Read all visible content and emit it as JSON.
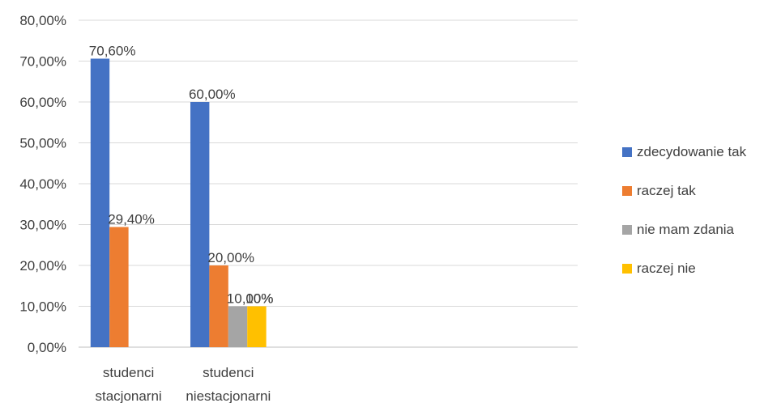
{
  "chart_data": {
    "type": "bar",
    "title": "",
    "xlabel": "",
    "ylabel": "",
    "ylim": [
      0,
      80
    ],
    "y_tick_step": 10,
    "y_tick_labels": [
      "0,00%",
      "10,00%",
      "20,00%",
      "30,00%",
      "40,00%",
      "50,00%",
      "60,00%",
      "70,00%",
      "80,00%"
    ],
    "grid": "horizontal",
    "legend_position": "right",
    "categories": [
      [
        "studenci",
        "stacjonarni"
      ],
      [
        "studenci",
        "niestacjonarni"
      ],
      [
        "",
        ""
      ],
      [
        "",
        ""
      ],
      [
        "",
        ""
      ]
    ],
    "series": [
      {
        "name": "zdecydowanie tak",
        "color": "#4472C4",
        "values": [
          70.6,
          60.0,
          null,
          null,
          null
        ],
        "labels": [
          "70,60%",
          "60,00%",
          "",
          "",
          ""
        ]
      },
      {
        "name": "raczej tak",
        "color": "#ED7D31",
        "values": [
          29.4,
          20.0,
          null,
          null,
          null
        ],
        "labels": [
          "29,40%",
          "20,00%",
          "",
          "",
          ""
        ]
      },
      {
        "name": "nie mam zdania",
        "color": "#A5A5A5",
        "values": [
          null,
          10.0,
          null,
          null,
          null
        ],
        "labels": [
          "",
          "10,00%",
          "",
          "",
          ""
        ]
      },
      {
        "name": "raczej nie",
        "color": "#FFC000",
        "values": [
          null,
          10.0,
          null,
          null,
          null
        ],
        "labels": [
          "",
          "10%",
          "",
          "",
          ""
        ]
      }
    ]
  }
}
